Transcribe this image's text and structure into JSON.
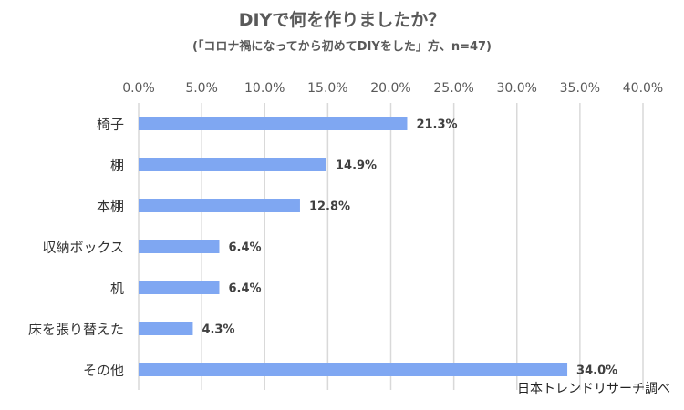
{
  "chart_data": {
    "type": "bar",
    "orientation": "horizontal",
    "title": "DIYで何を作りましたか？",
    "subtitle": "(「コロナ禍になってから初めてDIYをした」方、n=47)",
    "categories": [
      "椅子",
      "棚",
      "本棚",
      "収納ボックス",
      "机",
      "床を張り替えた",
      "その他"
    ],
    "values": [
      21.3,
      14.9,
      12.8,
      6.4,
      6.4,
      4.3,
      34.0
    ],
    "data_labels": [
      "21.3%",
      "14.9%",
      "12.8%",
      "6.4%",
      "6.4%",
      "4.3%",
      "34.0%"
    ],
    "xlim": [
      0,
      40
    ],
    "x_ticks": [
      "0.0%",
      "5.0%",
      "10.0%",
      "15.0%",
      "20.0%",
      "25.0%",
      "30.0%",
      "35.0%",
      "40.0%"
    ],
    "axis_position": "top",
    "grid": true,
    "bar_color": "#7fa7f2",
    "source": "日本トレンドリサーチ調べ"
  }
}
